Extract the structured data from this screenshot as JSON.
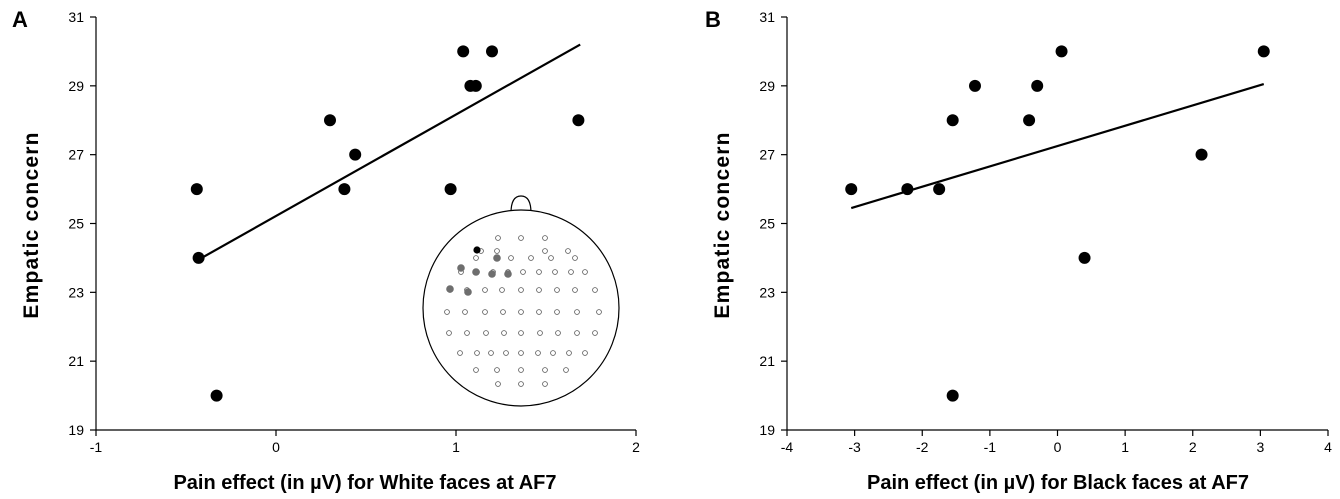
{
  "chart_data": [
    {
      "type": "scatter",
      "panel_label": "A",
      "xlabel": "Pain effect (in µV) for White faces at AF7",
      "ylabel": "Empatic concern",
      "xlim": [
        -1,
        2
      ],
      "ylim": [
        19,
        31
      ],
      "xticks": [
        -1,
        0,
        1,
        2
      ],
      "yticks": [
        19,
        21,
        23,
        25,
        27,
        29,
        31
      ],
      "x": [
        -0.44,
        -0.43,
        -0.33,
        0.3,
        0.38,
        0.44,
        0.97,
        1.04,
        1.08,
        1.11,
        1.2,
        1.68
      ],
      "y": [
        26,
        24,
        20,
        28,
        26,
        27,
        26,
        30,
        29,
        29,
        30,
        28
      ],
      "trendline": {
        "x": [
          -0.43,
          1.69
        ],
        "y": [
          23.95,
          30.2
        ]
      },
      "inset": {
        "description": "electrode montage",
        "electrode_colors": {
          "highlight": "#000000",
          "cluster": "#6e6e6e",
          "other": "#ffffff"
        }
      }
    },
    {
      "type": "scatter",
      "panel_label": "B",
      "xlabel": "Pain effect (in µV) for Black faces at AF7",
      "ylabel": "Empatic concern",
      "xlim": [
        -4,
        4
      ],
      "ylim": [
        19,
        31
      ],
      "xticks": [
        -4,
        -3,
        -2,
        -1,
        0,
        1,
        2,
        3,
        4
      ],
      "yticks": [
        19,
        21,
        23,
        25,
        27,
        29,
        31
      ],
      "x": [
        -3.05,
        -2.22,
        -1.75,
        -1.55,
        -1.55,
        -1.22,
        -0.42,
        -0.3,
        0.06,
        0.4,
        2.13,
        3.05
      ],
      "y": [
        26,
        26,
        26,
        28,
        20,
        29,
        28,
        29,
        30,
        24,
        27,
        30
      ],
      "trendline": {
        "x": [
          -3.05,
          3.05
        ],
        "y": [
          25.45,
          29.05
        ]
      }
    }
  ]
}
